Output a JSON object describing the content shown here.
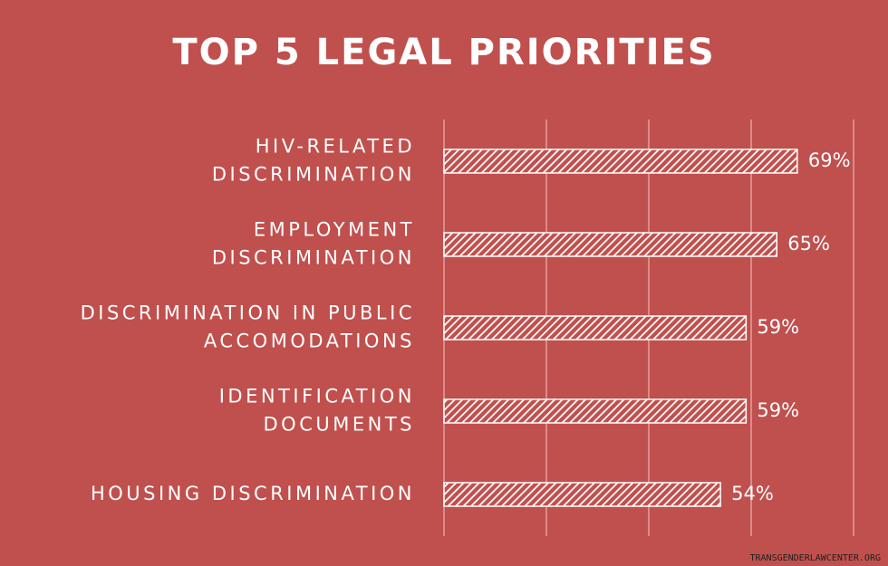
{
  "chart_data": {
    "type": "bar",
    "orientation": "horizontal",
    "title": "TOP 5 LEGAL PRIORITIES",
    "categories": [
      [
        "HIV-RELATED",
        "DISCRIMINATION"
      ],
      [
        "EMPLOYMENT",
        "DISCRIMINATION"
      ],
      [
        "DISCRIMINATION IN PUBLIC",
        "ACCOMODATIONS"
      ],
      [
        "IDENTIFICATION",
        "DOCUMENTS"
      ],
      [
        "HOUSING DISCRIMINATION"
      ]
    ],
    "values": [
      69,
      65,
      59,
      59,
      54
    ],
    "value_labels": [
      "69%",
      "65%",
      "59%",
      "59%",
      "54%"
    ],
    "color": "#ffffff",
    "background": "#c0504d",
    "xlim": [
      0,
      80
    ],
    "xticks": [
      0,
      20,
      40,
      60,
      80
    ],
    "grid": true,
    "source": "TRANSGENDERLAWCENTER.ORG"
  }
}
